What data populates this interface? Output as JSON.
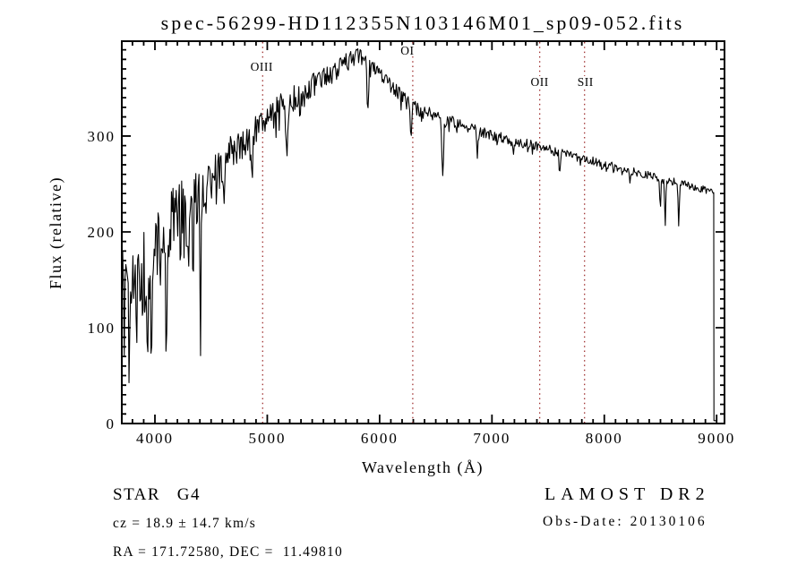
{
  "header": {
    "title": "spec-56299-HD112355N103146M01_sp09-052.fits"
  },
  "annotations": {
    "class_label": "STAR   G4",
    "survey": "LAMOST DR2",
    "cz": "cz = 18.9 ± 14.7 km/s",
    "obs_date": "Obs-Date: 20130106",
    "radec": "RA = 171.72580, DEC =  11.49810"
  },
  "chart_data": {
    "type": "line",
    "title": "spec-56299-HD112355N103146M01_sp09-052.fits",
    "xlabel": "Wavelength (Å)",
    "ylabel": "Flux (relative)",
    "xlim": [
      3705,
      9070
    ],
    "ylim": [
      0,
      399
    ],
    "x_ticks_major": [
      4000,
      5000,
      6000,
      7000,
      8000,
      9000
    ],
    "x_minor_step": 100,
    "y_ticks_major": [
      0,
      100,
      200,
      300
    ],
    "y_minor_step": 10,
    "grid": false,
    "line_color": "#000000",
    "marker_line_color": "#a03333",
    "line_markers": [
      {
        "label": "OIII",
        "wavelength": 4959,
        "label_baseline_y": 79,
        "label_dx": -1
      },
      {
        "label": "OI",
        "wavelength": 6295,
        "label_baseline_y": 61,
        "label_dx": -6
      },
      {
        "label": "OII",
        "wavelength": 7425,
        "label_baseline_y": 96,
        "label_dx": 0
      },
      {
        "label": "SII",
        "wavelength": 7824,
        "label_baseline_y": 96,
        "label_dx": 1
      }
    ],
    "spectrum": {
      "sample_step_angstrom": 7,
      "range": [
        3706,
        8972
      ],
      "continuum": [
        [
          3705,
          150
        ],
        [
          3800,
          155
        ],
        [
          3900,
          165
        ],
        [
          4000,
          180
        ],
        [
          4100,
          200
        ],
        [
          4200,
          220
        ],
        [
          4300,
          230
        ],
        [
          4400,
          240
        ],
        [
          4500,
          250
        ],
        [
          4600,
          268
        ],
        [
          4700,
          282
        ],
        [
          4800,
          292
        ],
        [
          4900,
          305
        ],
        [
          5000,
          318
        ],
        [
          5100,
          328
        ],
        [
          5200,
          336
        ],
        [
          5300,
          344
        ],
        [
          5400,
          352
        ],
        [
          5500,
          360
        ],
        [
          5600,
          368
        ],
        [
          5700,
          377
        ],
        [
          5800,
          385
        ],
        [
          5900,
          375
        ],
        [
          6000,
          365
        ],
        [
          6100,
          352
        ],
        [
          6200,
          340
        ],
        [
          6300,
          330
        ],
        [
          6400,
          325
        ],
        [
          6500,
          320
        ],
        [
          6600,
          316
        ],
        [
          6700,
          312
        ],
        [
          6800,
          308
        ],
        [
          6900,
          305
        ],
        [
          7000,
          301
        ],
        [
          7200,
          295
        ],
        [
          7400,
          289
        ],
        [
          7600,
          283
        ],
        [
          7800,
          277
        ],
        [
          8000,
          271
        ],
        [
          8200,
          265
        ],
        [
          8400,
          259
        ],
        [
          8600,
          253
        ],
        [
          8800,
          247
        ],
        [
          8975,
          241
        ]
      ],
      "noise_amplitude": [
        [
          3705,
          48
        ],
        [
          3800,
          46
        ],
        [
          3900,
          44
        ],
        [
          4000,
          40
        ],
        [
          4100,
          36
        ],
        [
          4200,
          32
        ],
        [
          4300,
          30
        ],
        [
          4400,
          28
        ],
        [
          4500,
          26
        ],
        [
          4700,
          22
        ],
        [
          4900,
          18
        ],
        [
          5100,
          15
        ],
        [
          5300,
          13
        ],
        [
          5500,
          12
        ],
        [
          5800,
          10
        ],
        [
          6000,
          9
        ],
        [
          6300,
          7.5
        ],
        [
          6600,
          6.5
        ],
        [
          7000,
          5.5
        ],
        [
          7500,
          5
        ],
        [
          8000,
          4.5
        ],
        [
          8500,
          4
        ],
        [
          8975,
          4
        ]
      ],
      "absorption_features": [
        [
          3727,
          95,
          5
        ],
        [
          3770,
          80,
          4
        ],
        [
          3835,
          75,
          4
        ],
        [
          3890,
          70,
          4
        ],
        [
          3933,
          85,
          6
        ],
        [
          3968,
          80,
          5
        ],
        [
          4045,
          60,
          4
        ],
        [
          4101,
          150,
          4
        ],
        [
          4227,
          55,
          4
        ],
        [
          4300,
          55,
          12
        ],
        [
          4340,
          60,
          5
        ],
        [
          4405,
          190,
          3.5
        ],
        [
          4861,
          48,
          8
        ],
        [
          5175,
          42,
          9
        ],
        [
          5893,
          55,
          6
        ],
        [
          6280,
          30,
          5
        ],
        [
          6563,
          62,
          7
        ],
        [
          6870,
          25,
          7
        ],
        [
          7190,
          14,
          7
        ],
        [
          7605,
          20,
          7
        ],
        [
          8230,
          14,
          6
        ],
        [
          8498,
          34,
          5
        ],
        [
          8542,
          48,
          5
        ],
        [
          8662,
          44,
          5
        ]
      ],
      "edge_points": [
        [
          8974,
          241
        ],
        [
          8976,
          3
        ],
        [
          8997,
          3
        ]
      ]
    }
  }
}
